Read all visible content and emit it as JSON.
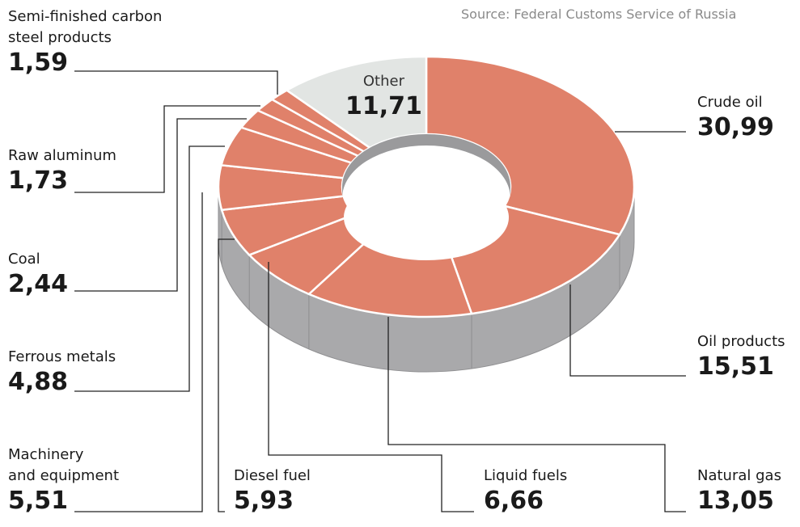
{
  "source": "Source: Federal Customs Service of Russia",
  "colors": {
    "slice": "#e0816a",
    "other": "#e2e5e3",
    "side": "#a9a9ab",
    "hole": "#9a9a9c",
    "separator": "#ffffff",
    "leader": "#222222"
  },
  "chart_data": {
    "type": "pie",
    "variant": "3d-donut",
    "title": "",
    "series": [
      {
        "name": "Crude oil",
        "value": 30.99,
        "label": "30,99"
      },
      {
        "name": "Oil products",
        "value": 15.51,
        "label": "15,51"
      },
      {
        "name": "Natural gas",
        "value": 13.05,
        "label": "13,05"
      },
      {
        "name": "Liquid fuels",
        "value": 6.66,
        "label": "6,66"
      },
      {
        "name": "Diesel fuel",
        "value": 5.93,
        "label": "5,93"
      },
      {
        "name": "Machinery and equipment",
        "value": 5.51,
        "label": "5,51"
      },
      {
        "name": "Ferrous metals",
        "value": 4.88,
        "label": "4,88"
      },
      {
        "name": "Coal",
        "value": 2.44,
        "label": "2,44"
      },
      {
        "name": "Raw aluminum",
        "value": 1.73,
        "label": "1,73"
      },
      {
        "name": "Semi-finished carbon steel products",
        "value": 1.59,
        "label": "1,59"
      },
      {
        "name": "Other",
        "value": 11.71,
        "label": "11,71"
      }
    ]
  },
  "labels": {
    "crude_oil": {
      "name": "Crude oil",
      "value": "30,99"
    },
    "oil_products": {
      "name": "Oil products",
      "value": "15,51"
    },
    "natural_gas": {
      "name": "Natural gas",
      "value": "13,05"
    },
    "liquid_fuels": {
      "name": "Liquid fuels",
      "value": "6,66"
    },
    "diesel_fuel": {
      "name": "Diesel fuel",
      "value": "5,93"
    },
    "machinery": {
      "name": "Machinery\nand equipment",
      "value": "5,51"
    },
    "ferrous": {
      "name": "Ferrous metals",
      "value": "4,88"
    },
    "coal": {
      "name": "Coal",
      "value": "2,44"
    },
    "aluminum": {
      "name": "Raw aluminum",
      "value": "1,73"
    },
    "semi": {
      "name": "Semi-finished carbon\nsteel products",
      "value": "1,59"
    },
    "other": {
      "name": "Other",
      "value": "11,71"
    }
  }
}
